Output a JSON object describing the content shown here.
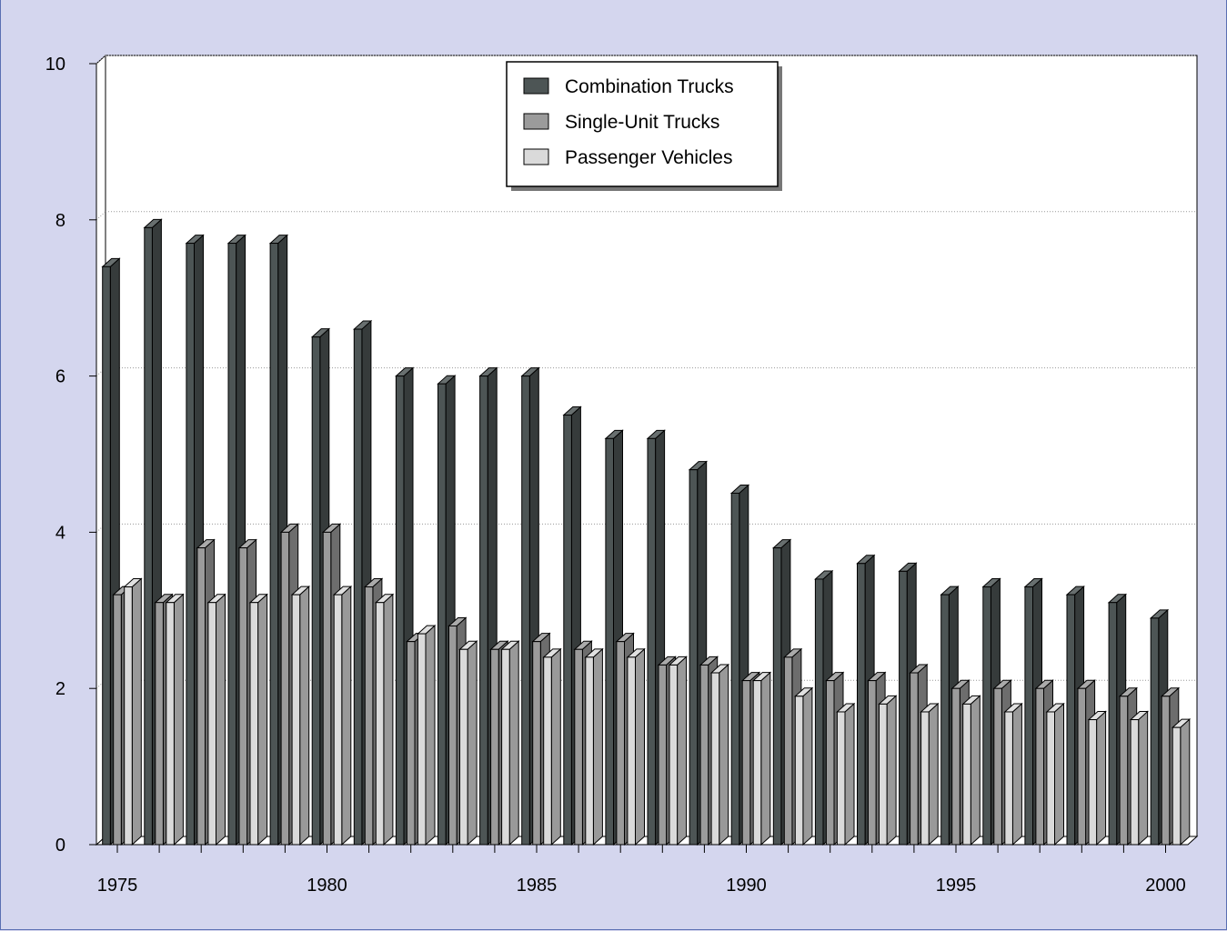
{
  "chart_data": {
    "type": "bar",
    "x": [
      1975,
      1976,
      1977,
      1978,
      1979,
      1980,
      1981,
      1982,
      1983,
      1984,
      1985,
      1986,
      1987,
      1988,
      1989,
      1990,
      1991,
      1992,
      1993,
      1994,
      1995,
      1996,
      1997,
      1998,
      1999,
      2000
    ],
    "x_tick_labels": [
      "1975",
      "1980",
      "1985",
      "1990",
      "1995",
      "2000"
    ],
    "y_tick_labels": [
      "0",
      "2",
      "4",
      "6",
      "8",
      "10"
    ],
    "ylim": [
      0,
      10
    ],
    "grid": "horizontal dotted",
    "legend_position": "top-center",
    "series": [
      {
        "name": "Combination Trucks",
        "color": "#4d5555",
        "values": [
          7.4,
          7.9,
          7.7,
          7.7,
          7.7,
          6.5,
          6.6,
          6.0,
          5.9,
          6.0,
          6.0,
          5.5,
          5.2,
          5.2,
          4.8,
          4.5,
          3.8,
          3.4,
          3.6,
          3.5,
          3.2,
          3.3,
          3.3,
          3.2,
          3.1,
          2.9
        ]
      },
      {
        "name": "Single-Unit Trucks",
        "color": "#9b9b9b",
        "values": [
          3.2,
          3.1,
          3.8,
          3.8,
          4.0,
          4.0,
          3.3,
          2.6,
          2.8,
          2.5,
          2.6,
          2.5,
          2.6,
          2.3,
          2.3,
          2.1,
          2.4,
          2.1,
          2.1,
          2.2,
          2.0,
          2.0,
          2.0,
          2.0,
          1.9,
          1.9
        ]
      },
      {
        "name": "Passenger Vehicles",
        "color": "#dadada",
        "values": [
          3.3,
          3.1,
          3.1,
          3.1,
          3.2,
          3.2,
          3.1,
          2.7,
          2.5,
          2.5,
          2.4,
          2.4,
          2.4,
          2.3,
          2.2,
          2.1,
          1.9,
          1.7,
          1.8,
          1.7,
          1.8,
          1.7,
          1.7,
          1.6,
          1.6,
          1.5
        ]
      }
    ]
  }
}
